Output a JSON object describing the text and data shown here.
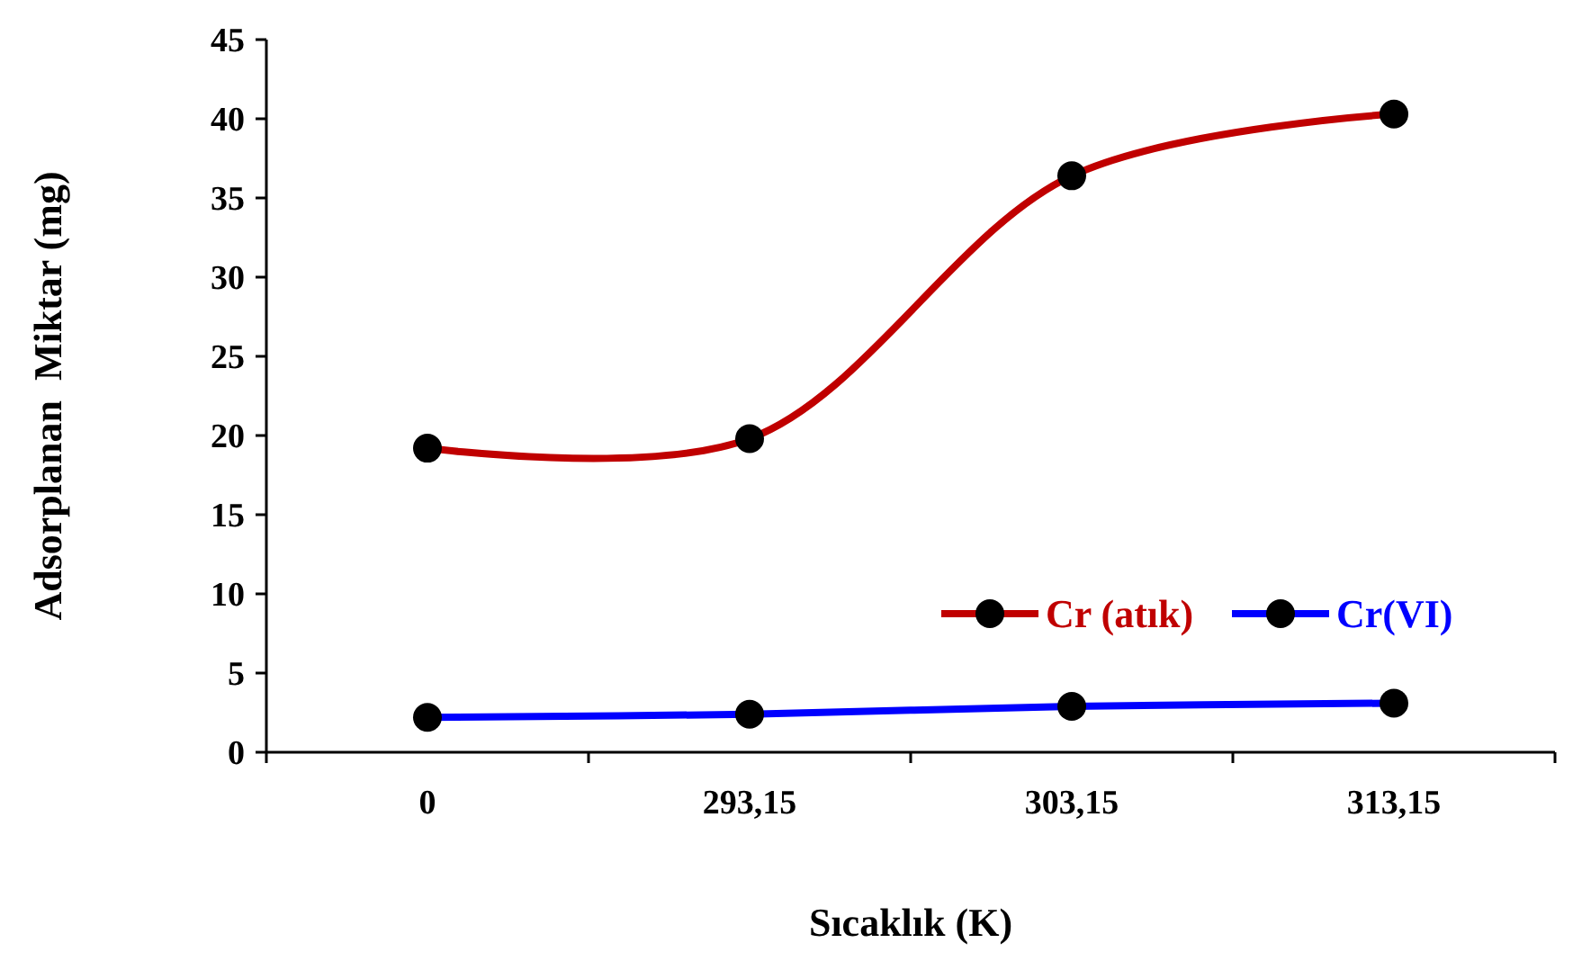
{
  "chart_data": {
    "type": "line",
    "xlabel": "Sıcaklık (K)",
    "ylabel": "Adsorplanan  Miktar (mg)",
    "categories": [
      "0",
      "293,15",
      "303,15",
      "313,15"
    ],
    "series": [
      {
        "name": "Cr (atık)",
        "color": "#c00000",
        "values": [
          19.2,
          19.8,
          36.4,
          40.3
        ]
      },
      {
        "name": "Cr(VI)",
        "color": "#0000ff",
        "values": [
          2.2,
          2.4,
          2.9,
          3.1
        ]
      }
    ],
    "ylim": [
      0,
      45
    ],
    "yticks": [
      0,
      5,
      10,
      15,
      20,
      25,
      30,
      35,
      40,
      45
    ],
    "grid": false,
    "legend": "right",
    "marker": "circle",
    "line_style": "solid"
  }
}
